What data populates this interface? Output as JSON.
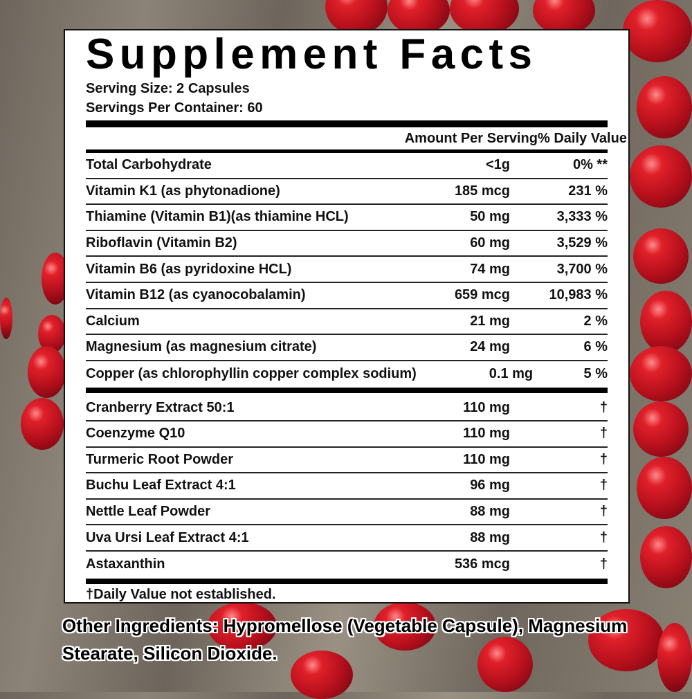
{
  "title": "Supplement Facts",
  "serving_size": "Serving Size: 2 Capsules",
  "servings_per_container": "Servings Per Container: 60",
  "header": {
    "amount": "Amount Per Serving",
    "dv": "% Daily Value"
  },
  "section1": [
    {
      "name": "Total Carbohydrate",
      "amount": "<1g",
      "dv": "0% **"
    },
    {
      "name": "Vitamin K1 (as phytonadione)",
      "amount": "185 mcg",
      "dv": "231 %"
    },
    {
      "name": "Thiamine (Vitamin B1)(as thiamine HCL)",
      "amount": "50 mg",
      "dv": "3,333 %"
    },
    {
      "name": "Riboflavin (Vitamin B2)",
      "amount": "60 mg",
      "dv": "3,529 %"
    },
    {
      "name": "Vitamin B6 (as pyridoxine HCL)",
      "amount": "74 mg",
      "dv": "3,700 %"
    },
    {
      "name": "Vitamin B12 (as cyanocobalamin)",
      "amount": "659 mcg",
      "dv": "10,983 %"
    },
    {
      "name": "Calcium",
      "amount": "21 mg",
      "dv": "2 %"
    },
    {
      "name": "Magnesium (as magnesium citrate)",
      "amount": "24 mg",
      "dv": "6 %"
    },
    {
      "name": "Copper (as chlorophyllin copper complex sodium)",
      "amount": "0.1 mg",
      "dv": "5 %"
    }
  ],
  "section2": [
    {
      "name": "Cranberry Extract 50:1",
      "amount": "110 mg",
      "dv": "†"
    },
    {
      "name": "Coenzyme Q10",
      "amount": "110 mg",
      "dv": "†"
    },
    {
      "name": "Turmeric Root Powder",
      "amount": "110 mg",
      "dv": "†"
    },
    {
      "name": "Buchu Leaf Extract 4:1",
      "amount": "96 mg",
      "dv": "†"
    },
    {
      "name": "Nettle Leaf Powder",
      "amount": "88 mg",
      "dv": "†"
    },
    {
      "name": "Uva Ursi Leaf Extract 4:1",
      "amount": "88 mg",
      "dv": "†"
    },
    {
      "name": "Astaxanthin",
      "amount": "536 mcg",
      "dv": "†"
    }
  ],
  "footnote": "†Daily Value not established.",
  "other_ingredients": "Other Ingredients: Hypromellose (Vegetable Capsule), Magnesium Stearate, Silicon Dioxide."
}
